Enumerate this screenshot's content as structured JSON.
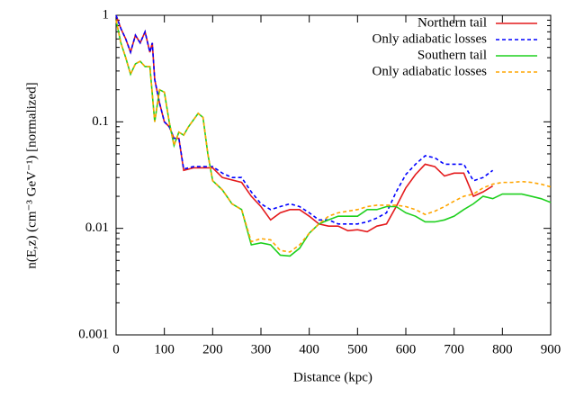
{
  "chart_data": {
    "type": "line",
    "xlabel": "Distance (kpc)",
    "ylabel": "n(E,z) (cm⁻³ GeV⁻¹) [normalized]",
    "xlim": [
      0,
      900
    ],
    "xticks": [
      0,
      100,
      200,
      300,
      400,
      500,
      600,
      700,
      800,
      900
    ],
    "ylim": [
      0.001,
      1
    ],
    "yticks": [
      0.001,
      0.01,
      0.1,
      1
    ],
    "ylog": true,
    "legend": "top-right",
    "series": [
      {
        "name": "Northern tail",
        "color": "#e41a1c",
        "dashed": false,
        "x": [
          0,
          10,
          20,
          30,
          40,
          50,
          60,
          70,
          75,
          80,
          90,
          100,
          110,
          120,
          130,
          140,
          160,
          200,
          220,
          260,
          280,
          300,
          320,
          340,
          360,
          380,
          400,
          420,
          440,
          460,
          480,
          500,
          520,
          540,
          560,
          580,
          600,
          620,
          640,
          660,
          680,
          700,
          720,
          740,
          760,
          780
        ],
        "values": [
          1,
          0.75,
          0.6,
          0.45,
          0.65,
          0.55,
          0.7,
          0.45,
          0.55,
          0.25,
          0.15,
          0.1,
          0.09,
          0.07,
          0.07,
          0.035,
          0.037,
          0.037,
          0.03,
          0.027,
          0.02,
          0.016,
          0.012,
          0.014,
          0.015,
          0.015,
          0.013,
          0.011,
          0.0105,
          0.0105,
          0.0095,
          0.0097,
          0.0093,
          0.0105,
          0.011,
          0.016,
          0.024,
          0.032,
          0.04,
          0.038,
          0.031,
          0.033,
          0.033,
          0.02,
          0.022,
          0.025
        ]
      },
      {
        "name": "Only adiabatic losses",
        "color": "#0000ff",
        "dashed": true,
        "x": [
          0,
          10,
          20,
          30,
          40,
          50,
          60,
          70,
          75,
          80,
          90,
          100,
          110,
          120,
          130,
          140,
          160,
          200,
          220,
          240,
          260,
          280,
          300,
          320,
          340,
          360,
          380,
          400,
          420,
          440,
          460,
          480,
          500,
          520,
          540,
          560,
          580,
          600,
          620,
          640,
          660,
          680,
          700,
          720,
          740,
          760,
          780
        ],
        "values": [
          1,
          0.75,
          0.6,
          0.45,
          0.65,
          0.55,
          0.7,
          0.45,
          0.55,
          0.25,
          0.15,
          0.1,
          0.09,
          0.07,
          0.07,
          0.036,
          0.038,
          0.038,
          0.033,
          0.03,
          0.03,
          0.022,
          0.017,
          0.015,
          0.016,
          0.017,
          0.016,
          0.014,
          0.012,
          0.012,
          0.011,
          0.011,
          0.011,
          0.0115,
          0.0125,
          0.014,
          0.022,
          0.032,
          0.04,
          0.048,
          0.046,
          0.04,
          0.04,
          0.04,
          0.028,
          0.03,
          0.035
        ]
      },
      {
        "name": "Southern tail",
        "color": "#1fd01f",
        "dashed": false,
        "x": [
          0,
          10,
          20,
          30,
          40,
          50,
          60,
          70,
          80,
          90,
          100,
          110,
          120,
          130,
          140,
          150,
          170,
          180,
          190,
          200,
          220,
          240,
          260,
          280,
          300,
          320,
          340,
          360,
          380,
          400,
          420,
          440,
          460,
          480,
          500,
          520,
          540,
          560,
          580,
          600,
          620,
          640,
          660,
          680,
          700,
          720,
          740,
          760,
          780,
          800,
          820,
          840,
          860,
          880,
          900
        ],
        "values": [
          0.9,
          0.55,
          0.4,
          0.28,
          0.35,
          0.37,
          0.33,
          0.33,
          0.1,
          0.2,
          0.19,
          0.1,
          0.06,
          0.08,
          0.075,
          0.09,
          0.12,
          0.11,
          0.05,
          0.028,
          0.023,
          0.017,
          0.015,
          0.007,
          0.0073,
          0.007,
          0.0056,
          0.0055,
          0.0065,
          0.009,
          0.011,
          0.012,
          0.013,
          0.013,
          0.013,
          0.015,
          0.015,
          0.016,
          0.016,
          0.014,
          0.013,
          0.0115,
          0.0115,
          0.012,
          0.013,
          0.015,
          0.017,
          0.02,
          0.019,
          0.021,
          0.021,
          0.021,
          0.02,
          0.019,
          0.0175
        ]
      },
      {
        "name": "Only adiabatic losses",
        "color": "#ffa500",
        "dashed": true,
        "x": [
          0,
          10,
          20,
          30,
          40,
          50,
          60,
          70,
          80,
          90,
          100,
          110,
          120,
          130,
          140,
          150,
          170,
          180,
          190,
          200,
          220,
          240,
          260,
          280,
          300,
          320,
          340,
          360,
          380,
          400,
          420,
          440,
          460,
          480,
          500,
          520,
          540,
          560,
          580,
          600,
          620,
          640,
          660,
          680,
          700,
          720,
          740,
          760,
          780,
          800,
          820,
          840,
          860,
          880,
          900
        ],
        "values": [
          0.9,
          0.55,
          0.4,
          0.28,
          0.35,
          0.37,
          0.33,
          0.33,
          0.1,
          0.2,
          0.19,
          0.1,
          0.06,
          0.08,
          0.075,
          0.09,
          0.12,
          0.11,
          0.05,
          0.028,
          0.023,
          0.017,
          0.015,
          0.0075,
          0.008,
          0.0078,
          0.0062,
          0.006,
          0.007,
          0.009,
          0.011,
          0.013,
          0.014,
          0.0145,
          0.015,
          0.016,
          0.0165,
          0.0165,
          0.0165,
          0.016,
          0.015,
          0.0135,
          0.0145,
          0.016,
          0.018,
          0.02,
          0.021,
          0.024,
          0.026,
          0.027,
          0.027,
          0.0275,
          0.027,
          0.026,
          0.0245
        ]
      }
    ]
  }
}
